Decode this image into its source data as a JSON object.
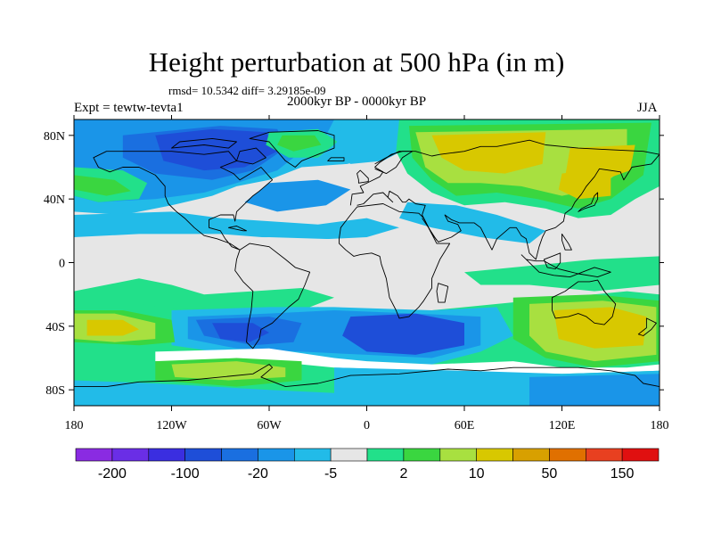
{
  "title": "Height perturbation at 500 hPa (in m)",
  "stats": "rmsd= 10.5342 diff= 3.29185e-09",
  "subtitle": "2000kyr BP - 0000kyr BP",
  "experiment": "Expt = tewtw-tevta1",
  "season": "JJA",
  "map": {
    "projection": "cylindrical-equidistant",
    "lon_range": [
      -180,
      180
    ],
    "lat_range": [
      -90,
      90
    ],
    "x_ticks": [
      {
        "value": -180,
        "label": "180"
      },
      {
        "value": -120,
        "label": "120W"
      },
      {
        "value": -60,
        "label": "60W"
      },
      {
        "value": 0,
        "label": "0"
      },
      {
        "value": 60,
        "label": "60E"
      },
      {
        "value": 120,
        "label": "120E"
      },
      {
        "value": 180,
        "label": "180"
      }
    ],
    "y_ticks": [
      {
        "value": 80,
        "label": "80N"
      },
      {
        "value": 40,
        "label": "40N"
      },
      {
        "value": 0,
        "label": "0"
      },
      {
        "value": -40,
        "label": "40S"
      },
      {
        "value": -80,
        "label": "80S"
      }
    ],
    "background_color": "#e6e6e6",
    "coastline_color": "#000000",
    "contour_fields": [
      {
        "lon": 10,
        "lat": -42,
        "value": -28,
        "level_index": 2
      },
      {
        "lon": -75,
        "lat": -42,
        "value": -22,
        "level_index": 3
      },
      {
        "lon": -70,
        "lat": 73,
        "value": -28,
        "level_index": 2
      },
      {
        "lon": 85,
        "lat": 65,
        "value": 48,
        "level_index": 9
      },
      {
        "lon": 140,
        "lat": -42,
        "value": 38,
        "level_index": 9
      },
      {
        "lon": -150,
        "lat": -40,
        "value": 35,
        "level_index": 9
      },
      {
        "lon": -100,
        "lat": -70,
        "value": 30,
        "level_index": 9
      }
    ]
  },
  "colorbar": {
    "colors": [
      "#8a2be2",
      "#6a2ee6",
      "#3a2ee0",
      "#1e4ed8",
      "#1a6fe0",
      "#1a95e8",
      "#22bbe8",
      "#e6e6e6",
      "#22e08a",
      "#3ad640",
      "#a8e040",
      "#d8c800",
      "#d8a000",
      "#e07000",
      "#e84020",
      "#e01010"
    ],
    "labels": [
      "-200",
      "-100",
      "-20",
      "-5",
      "2",
      "10",
      "50",
      "150"
    ]
  }
}
